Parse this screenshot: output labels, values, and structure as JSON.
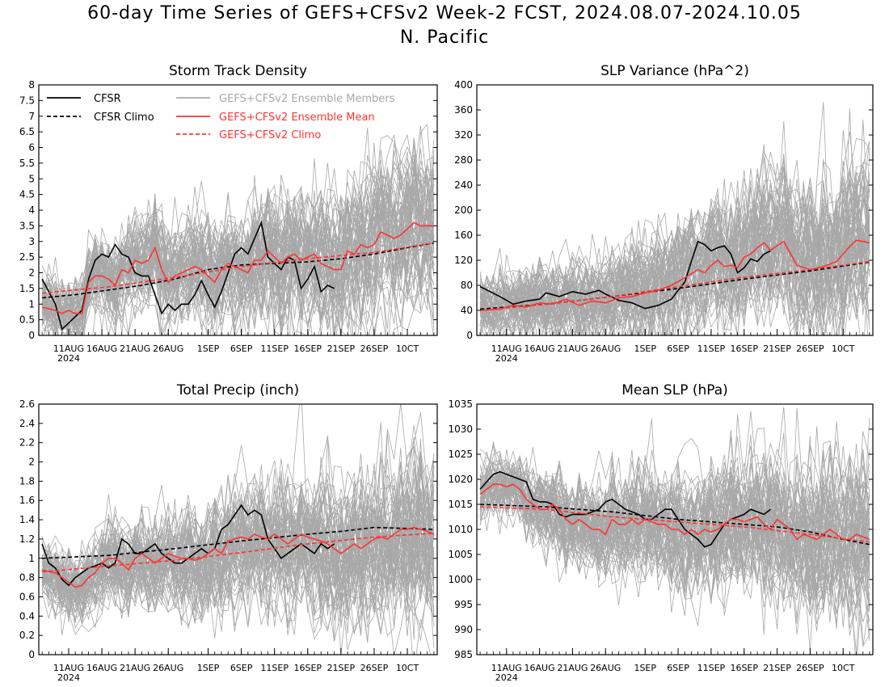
{
  "header": {
    "title": "60-day Time Series of GEFS+CFSv2 Week-2 FCST, 2024.08.07-2024.10.05",
    "region": "N. Pacific"
  },
  "legend": {
    "cfsr": "CFSR",
    "cfsr_climo": "CFSR Climo",
    "members": "GEFS+CFSv2 Ensemble Members",
    "ens_mean": "GEFS+CFSv2 Ensemble Mean",
    "gefs_climo": "GEFS+CFSv2 Climo"
  },
  "colors": {
    "cfsr": "#000000",
    "members": "#a8a8a8",
    "ens_mean": "#ff3333",
    "gefs_climo": "#ff3333"
  },
  "x_axis": {
    "tick_labels": [
      "11AUG",
      "16AUG",
      "21AUG",
      "26AUG",
      "1SEP",
      "6SEP",
      "11SEP",
      "16SEP",
      "21SEP",
      "26SEP",
      "10CT"
    ],
    "tick_days": [
      4,
      9,
      14,
      19,
      25,
      30,
      35,
      40,
      45,
      50,
      55
    ],
    "year_label": "2024",
    "days": 60
  },
  "chart_data": [
    {
      "type": "line",
      "title": "Storm Track Density",
      "ylim": [
        0,
        8
      ],
      "yticks": [
        "0",
        "0.5",
        "1",
        "1.5",
        "2",
        "2.5",
        "3",
        "3.5",
        "4",
        "4.5",
        "5",
        "5.5",
        "6",
        "6.5",
        "7",
        "7.5",
        "8"
      ],
      "series": [
        {
          "name": "CFSR",
          "style": "solid-black",
          "x": [
            0,
            2,
            3,
            5,
            6,
            7,
            8,
            9,
            10,
            11,
            12,
            13,
            14,
            15,
            16,
            18,
            19,
            20,
            21,
            22,
            23,
            24,
            25,
            26,
            27,
            29,
            30,
            31,
            32,
            33,
            34,
            35,
            36,
            37,
            38,
            39,
            40,
            41,
            42,
            43,
            44
          ],
          "values": [
            1.8,
            1.0,
            0.2,
            0.6,
            0.8,
            1.8,
            2.4,
            2.6,
            2.5,
            2.9,
            2.6,
            2.5,
            2.0,
            1.9,
            1.9,
            0.7,
            1.0,
            0.8,
            1.0,
            1.0,
            1.3,
            1.75,
            1.3,
            0.9,
            1.4,
            2.6,
            2.8,
            2.6,
            3.1,
            3.6,
            2.5,
            2.3,
            2.1,
            2.5,
            2.4,
            1.5,
            1.8,
            2.2,
            1.4,
            1.6,
            1.5
          ]
        },
        {
          "name": "CFSR Climo",
          "style": "dashed-black",
          "x": [
            0,
            5,
            10,
            15,
            20,
            25,
            30,
            35,
            40,
            45,
            50,
            55,
            59
          ],
          "values": [
            1.2,
            1.3,
            1.45,
            1.6,
            1.8,
            2.1,
            2.25,
            2.3,
            2.35,
            2.45,
            2.6,
            2.8,
            2.95
          ]
        },
        {
          "name": "GEFS+CFSv2 Ensemble Mean",
          "style": "solid-red",
          "x": [
            0,
            2,
            3,
            4,
            5,
            6,
            7,
            8,
            9,
            10,
            11,
            12,
            13,
            14,
            15,
            16,
            17,
            18,
            19,
            20,
            21,
            22,
            23,
            24,
            25,
            26,
            27,
            28,
            29,
            30,
            31,
            32,
            33,
            34,
            35,
            36,
            37,
            38,
            39,
            40,
            41,
            42,
            43,
            44,
            45,
            46,
            47,
            48,
            49,
            50,
            51,
            52,
            53,
            54,
            55,
            56,
            57,
            58,
            59
          ],
          "values": [
            0.9,
            0.8,
            0.7,
            0.8,
            0.7,
            0.7,
            1.7,
            1.9,
            1.9,
            1.8,
            1.6,
            2.1,
            2.0,
            2.4,
            2.3,
            2.4,
            2.8,
            2.1,
            1.7,
            1.9,
            2.0,
            2.1,
            2.2,
            2.1,
            1.9,
            1.7,
            2.1,
            2.3,
            2.2,
            2.1,
            2.0,
            2.4,
            2.4,
            2.7,
            2.5,
            2.3,
            2.5,
            2.6,
            2.4,
            2.5,
            2.6,
            2.3,
            2.2,
            2.1,
            2.1,
            2.7,
            2.6,
            2.9,
            2.8,
            2.9,
            3.3,
            3.2,
            3.1,
            3.2,
            3.4,
            3.6,
            3.5,
            3.5,
            3.5
          ]
        },
        {
          "name": "GEFS+CFSv2 Climo",
          "style": "dashed-red",
          "x": [
            0,
            10,
            20,
            30,
            40,
            50,
            59
          ],
          "values": [
            1.35,
            1.55,
            1.85,
            2.2,
            2.45,
            2.65,
            2.95
          ]
        }
      ]
    },
    {
      "type": "line",
      "title": "SLP Variance (hPa^2)",
      "ylim": [
        0,
        400
      ],
      "yticks": [
        "0",
        "40",
        "80",
        "120",
        "160",
        "200",
        "240",
        "280",
        "320",
        "360",
        "400"
      ],
      "series": [
        {
          "name": "CFSR",
          "style": "solid-black",
          "x": [
            0,
            3,
            5,
            7,
            9,
            10,
            12,
            14,
            16,
            18,
            19,
            21,
            23,
            25,
            27,
            29,
            30,
            31,
            32,
            33,
            34,
            35,
            36,
            37,
            38,
            39,
            40,
            41,
            42,
            43,
            44
          ],
          "values": [
            78,
            62,
            50,
            55,
            58,
            68,
            62,
            70,
            66,
            72,
            66,
            56,
            52,
            43,
            48,
            58,
            72,
            85,
            118,
            150,
            145,
            135,
            140,
            143,
            130,
            100,
            108,
            122,
            118,
            130,
            135
          ]
        },
        {
          "name": "CFSR Climo",
          "style": "dashed-black",
          "x": [
            0,
            10,
            20,
            30,
            40,
            50,
            59
          ],
          "values": [
            42,
            50,
            62,
            75,
            90,
            103,
            117
          ]
        },
        {
          "name": "GEFS+CFSv2 Ensemble Mean",
          "style": "solid-red",
          "x": [
            0,
            3,
            5,
            7,
            9,
            11,
            13,
            15,
            17,
            19,
            21,
            23,
            25,
            27,
            29,
            31,
            33,
            34,
            35,
            36,
            37,
            38,
            39,
            40,
            41,
            42,
            43,
            44,
            46,
            48,
            50,
            52,
            54,
            56,
            57,
            58,
            59
          ],
          "values": [
            40,
            42,
            48,
            45,
            52,
            50,
            58,
            48,
            55,
            52,
            60,
            62,
            68,
            72,
            80,
            92,
            105,
            100,
            112,
            120,
            110,
            112,
            108,
            125,
            130,
            140,
            148,
            136,
            150,
            112,
            105,
            110,
            118,
            142,
            152,
            150,
            148
          ]
        },
        {
          "name": "GEFS+CFSv2 Climo",
          "style": "dashed-red",
          "x": [
            0,
            10,
            20,
            30,
            40,
            50,
            59
          ],
          "values": [
            40,
            50,
            62,
            78,
            93,
            105,
            118
          ]
        }
      ]
    },
    {
      "type": "line",
      "title": "Total Precip (inch)",
      "ylim": [
        0,
        2.6
      ],
      "yticks": [
        "0",
        "0.2",
        "0.4",
        "0.6",
        "0.8",
        "1",
        "1.2",
        "1.4",
        "1.6",
        "1.8",
        "2",
        "2.2",
        "2.4",
        "2.6"
      ],
      "series": [
        {
          "name": "CFSR",
          "style": "solid-black",
          "x": [
            0,
            1,
            2,
            3,
            4,
            5,
            6,
            7,
            8,
            9,
            10,
            11,
            12,
            13,
            14,
            15,
            16,
            17,
            18,
            19,
            20,
            21,
            22,
            23,
            24,
            25,
            26,
            27,
            28,
            29,
            30,
            31,
            32,
            33,
            34,
            35,
            36,
            37,
            38,
            39,
            40,
            41,
            42,
            43,
            44
          ],
          "values": [
            1.15,
            0.95,
            0.9,
            0.78,
            0.72,
            0.8,
            0.85,
            0.9,
            0.92,
            0.95,
            0.9,
            0.95,
            1.2,
            1.15,
            1.05,
            1.05,
            1.1,
            1.15,
            1.05,
            1.0,
            0.95,
            0.95,
            1.0,
            1.05,
            1.1,
            1.05,
            1.1,
            1.3,
            1.35,
            1.45,
            1.55,
            1.45,
            1.5,
            1.45,
            1.2,
            1.1,
            1.0,
            1.05,
            1.1,
            1.15,
            1.1,
            1.05,
            1.15,
            1.1,
            1.15
          ]
        },
        {
          "name": "CFSR Climo",
          "style": "dashed-black",
          "x": [
            0,
            10,
            20,
            30,
            40,
            45,
            50,
            55,
            59
          ],
          "values": [
            1.0,
            1.03,
            1.1,
            1.18,
            1.25,
            1.28,
            1.32,
            1.31,
            1.3
          ]
        },
        {
          "name": "GEFS+CFSv2 Ensemble Mean",
          "style": "solid-red",
          "x": [
            0,
            2,
            3,
            4,
            5,
            6,
            7,
            8,
            9,
            10,
            11,
            12,
            13,
            14,
            15,
            16,
            17,
            18,
            19,
            20,
            21,
            22,
            23,
            24,
            25,
            26,
            27,
            28,
            29,
            30,
            31,
            32,
            33,
            34,
            35,
            36,
            37,
            38,
            39,
            40,
            41,
            42,
            43,
            44,
            45,
            46,
            47,
            48,
            49,
            50,
            51,
            52,
            53,
            54,
            55,
            56,
            57,
            58,
            59
          ],
          "values": [
            0.88,
            0.85,
            0.8,
            0.75,
            0.7,
            0.72,
            0.8,
            0.85,
            0.95,
            1.0,
            1.0,
            0.95,
            0.88,
            1.0,
            1.05,
            1.0,
            0.95,
            1.0,
            1.05,
            1.02,
            1.0,
            1.0,
            0.98,
            1.0,
            1.05,
            1.1,
            1.05,
            1.18,
            1.2,
            1.22,
            1.2,
            1.25,
            1.22,
            1.2,
            1.25,
            1.2,
            1.15,
            1.2,
            1.25,
            1.22,
            1.2,
            1.18,
            1.15,
            1.1,
            1.05,
            1.1,
            1.15,
            1.1,
            1.15,
            1.2,
            1.22,
            1.2,
            1.25,
            1.3,
            1.3,
            1.32,
            1.3,
            1.28,
            1.25
          ]
        },
        {
          "name": "GEFS+CFSv2 Climo",
          "style": "dashed-red",
          "x": [
            0,
            10,
            20,
            30,
            40,
            50,
            59
          ],
          "values": [
            0.86,
            0.92,
            0.98,
            1.06,
            1.15,
            1.22,
            1.26
          ]
        }
      ]
    },
    {
      "type": "line",
      "title": "Mean SLP (hPa)",
      "ylim": [
        985,
        1035
      ],
      "yticks": [
        "985",
        "990",
        "995",
        "1000",
        "1005",
        "1010",
        "1015",
        "1020",
        "1025",
        "1030",
        "1035"
      ],
      "series": [
        {
          "name": "CFSR",
          "style": "solid-black",
          "x": [
            0,
            2,
            3,
            4,
            5,
            6,
            7,
            8,
            9,
            10,
            11,
            12,
            13,
            14,
            15,
            16,
            17,
            18,
            19,
            20,
            21,
            22,
            23,
            24,
            25,
            26,
            27,
            28,
            29,
            30,
            31,
            32,
            33,
            34,
            35,
            36,
            37,
            38,
            39,
            40,
            41,
            42,
            43,
            44
          ],
          "values": [
            1018,
            1021,
            1021.5,
            1021,
            1020.5,
            1020,
            1019.5,
            1016,
            1015.5,
            1015.5,
            1015,
            1013,
            1012.5,
            1013,
            1013,
            1013,
            1013.5,
            1014,
            1015.5,
            1016,
            1015,
            1014,
            1013.5,
            1013,
            1012,
            1012,
            1013,
            1014,
            1014,
            1012,
            1010,
            1009,
            1008,
            1006.5,
            1007,
            1009,
            1011,
            1012,
            1012.5,
            1013,
            1014,
            1013.5,
            1013,
            1014
          ]
        },
        {
          "name": "CFSR Climo",
          "style": "dashed-black",
          "x": [
            0,
            10,
            20,
            30,
            40,
            45,
            50,
            55,
            59
          ],
          "values": [
            1015,
            1014.5,
            1013.5,
            1012,
            1011,
            1010.5,
            1009.5,
            1008,
            1007
          ]
        },
        {
          "name": "GEFS+CFSv2 Ensemble Mean",
          "style": "solid-red",
          "x": [
            0,
            2,
            3,
            4,
            5,
            6,
            7,
            8,
            9,
            10,
            11,
            12,
            13,
            14,
            15,
            16,
            17,
            18,
            19,
            20,
            21,
            22,
            23,
            24,
            25,
            26,
            27,
            28,
            29,
            30,
            31,
            32,
            33,
            34,
            35,
            36,
            37,
            38,
            39,
            40,
            41,
            42,
            43,
            44,
            45,
            46,
            47,
            48,
            49,
            50,
            51,
            52,
            53,
            54,
            55,
            56,
            57,
            58,
            59
          ],
          "values": [
            1017,
            1019,
            1019,
            1018.5,
            1019,
            1018,
            1016,
            1015,
            1014,
            1014,
            1015,
            1014,
            1012,
            1011,
            1012,
            1011,
            1010,
            1010,
            1009,
            1012,
            1011,
            1011,
            1012,
            1011,
            1012,
            1011.5,
            1011,
            1011,
            1010,
            1010,
            1009,
            1010,
            1009,
            1010,
            1009.5,
            1010,
            1011,
            1012,
            1012,
            1011.5,
            1012,
            1012.5,
            1011,
            1010,
            1012,
            1011,
            1010,
            1008,
            1009,
            1008.5,
            1008,
            1009,
            1010,
            1009,
            1008,
            1008,
            1009,
            1008.5,
            1008
          ]
        },
        {
          "name": "GEFS+CFSv2 Climo",
          "style": "dashed-red",
          "x": [
            0,
            10,
            20,
            30,
            40,
            50,
            59
          ],
          "values": [
            1014.5,
            1014,
            1012.5,
            1011.5,
            1010.5,
            1009,
            1007.5
          ]
        }
      ]
    }
  ]
}
